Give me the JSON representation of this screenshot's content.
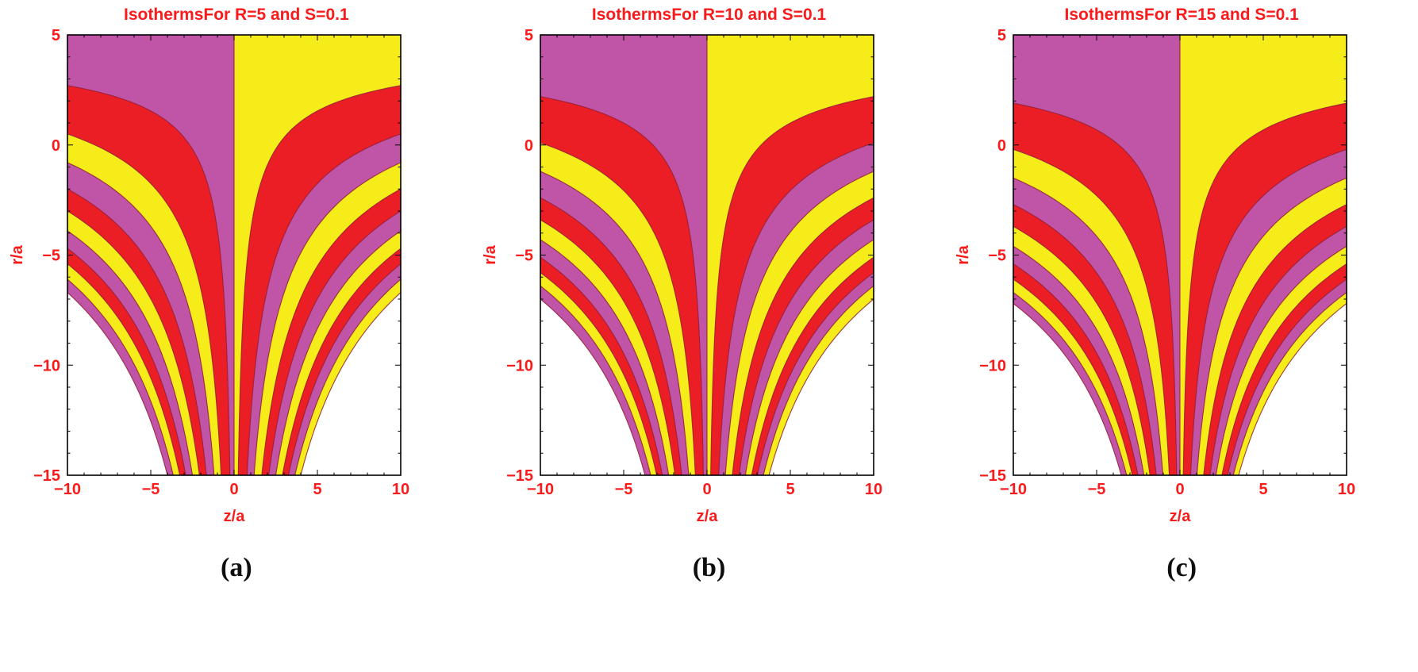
{
  "colors": {
    "band_purple": "#C054A6",
    "band_red": "#EC1E25",
    "band_yellow": "#F6EC19",
    "contour_line": "#8F1C33",
    "label_red": "#F91B1B",
    "frame_black": "#000000",
    "caption_black": "#0F0F0F",
    "background": "#FFFFFF"
  },
  "chart_data": [
    {
      "type": "contour",
      "title": "IsothermsFor R=5 and S=0.1",
      "caption": "(a)",
      "params": {
        "R": 5,
        "S": 0.1
      },
      "xlabel": "z/a",
      "ylabel": "r/a",
      "xlim": [
        -10,
        10
      ],
      "ylim": [
        -15,
        5
      ],
      "xtick_values": [
        -10,
        -5,
        0,
        5,
        10
      ],
      "xtick_labels": [
        "−10",
        "−5",
        "0",
        "5",
        "10"
      ],
      "ytick_values": [
        5,
        0,
        -5,
        -10,
        -15
      ],
      "ytick_labels": [
        "5",
        "0",
        "−5",
        "−10",
        "−15"
      ],
      "grid": false,
      "legend": "none",
      "model": "isotherm band boundaries: |z| = z_bottom*(20/(5-r))^q with q = ln(10/z_bottom)/ln(20/(5-r_left)); bands fill between successive boundaries, white outside outermost",
      "band_colors_left": [
        "band_purple",
        "band_red",
        "band_yellow"
      ],
      "band_colors_right": [
        "band_yellow",
        "band_red",
        "band_purple"
      ],
      "isotherm_boundaries": [
        {
          "r_left": 2.7,
          "z_bottom": 0.25
        },
        {
          "r_left": 0.5,
          "z_bottom": 0.78
        },
        {
          "r_left": -0.8,
          "z_bottom": 1.2
        },
        {
          "r_left": -2.0,
          "z_bottom": 1.66
        },
        {
          "r_left": -3.0,
          "z_bottom": 2.08
        },
        {
          "r_left": -3.9,
          "z_bottom": 2.5
        },
        {
          "r_left": -4.7,
          "z_bottom": 2.9
        },
        {
          "r_left": -5.4,
          "z_bottom": 3.26
        },
        {
          "r_left": -6.1,
          "z_bottom": 3.65
        },
        {
          "r_left": -6.7,
          "z_bottom": 4.0
        }
      ]
    },
    {
      "type": "contour",
      "title": "IsothermsFor R=10 and S=0.1",
      "caption": "(b)",
      "params": {
        "R": 10,
        "S": 0.1
      },
      "xlabel": "z/a",
      "ylabel": "r/a",
      "xlim": [
        -10,
        10
      ],
      "ylim": [
        -15,
        5
      ],
      "xtick_values": [
        -10,
        -5,
        0,
        5,
        10
      ],
      "xtick_labels": [
        "−10",
        "−5",
        "0",
        "5",
        "10"
      ],
      "ytick_values": [
        5,
        0,
        -5,
        -10,
        -15
      ],
      "ytick_labels": [
        "5",
        "0",
        "−5",
        "−10",
        "−15"
      ],
      "grid": false,
      "legend": "none",
      "model": "isotherm band boundaries: |z| = z_bottom*(20/(5-r))^q with q = ln(10/z_bottom)/ln(20/(5-r_left)); bands fill between successive boundaries, white outside outermost",
      "band_colors_left": [
        "band_purple",
        "band_red",
        "band_yellow"
      ],
      "band_colors_right": [
        "band_yellow",
        "band_red",
        "band_purple"
      ],
      "isotherm_boundaries": [
        {
          "r_left": 2.2,
          "z_bottom": 0.22
        },
        {
          "r_left": 0.1,
          "z_bottom": 0.7
        },
        {
          "r_left": -1.2,
          "z_bottom": 1.1
        },
        {
          "r_left": -2.4,
          "z_bottom": 1.52
        },
        {
          "r_left": -3.4,
          "z_bottom": 1.92
        },
        {
          "r_left": -4.3,
          "z_bottom": 2.3
        },
        {
          "r_left": -5.1,
          "z_bottom": 2.68
        },
        {
          "r_left": -5.8,
          "z_bottom": 3.02
        },
        {
          "r_left": -6.4,
          "z_bottom": 3.38
        },
        {
          "r_left": -7.0,
          "z_bottom": 3.72
        }
      ]
    },
    {
      "type": "contour",
      "title": "IsothermsFor R=15 and S=0.1",
      "caption": "(c)",
      "params": {
        "R": 15,
        "S": 0.1
      },
      "xlabel": "z/a",
      "ylabel": "r/a",
      "xlim": [
        -10,
        10
      ],
      "ylim": [
        -15,
        5
      ],
      "xtick_values": [
        -10,
        -5,
        0,
        5,
        10
      ],
      "xtick_labels": [
        "−10",
        "−5",
        "0",
        "5",
        "10"
      ],
      "ytick_values": [
        5,
        0,
        -5,
        -10,
        -15
      ],
      "ytick_labels": [
        "5",
        "0",
        "−5",
        "−10",
        "−15"
      ],
      "grid": false,
      "legend": "none",
      "model": "isotherm band boundaries: |z| = z_bottom*(20/(5-r))^q with q = ln(10/z_bottom)/ln(20/(5-r_left)); bands fill between successive boundaries, white outside outermost",
      "band_colors_left": [
        "band_purple",
        "band_red",
        "band_yellow"
      ],
      "band_colors_right": [
        "band_yellow",
        "band_red",
        "band_purple"
      ],
      "isotherm_boundaries": [
        {
          "r_left": 1.9,
          "z_bottom": 0.2
        },
        {
          "r_left": -0.2,
          "z_bottom": 0.64
        },
        {
          "r_left": -1.5,
          "z_bottom": 1.02
        },
        {
          "r_left": -2.7,
          "z_bottom": 1.42
        },
        {
          "r_left": -3.7,
          "z_bottom": 1.8
        },
        {
          "r_left": -4.6,
          "z_bottom": 2.16
        },
        {
          "r_left": -5.4,
          "z_bottom": 2.52
        },
        {
          "r_left": -6.1,
          "z_bottom": 2.86
        },
        {
          "r_left": -6.7,
          "z_bottom": 3.2
        },
        {
          "r_left": -7.2,
          "z_bottom": 3.52
        }
      ]
    }
  ]
}
